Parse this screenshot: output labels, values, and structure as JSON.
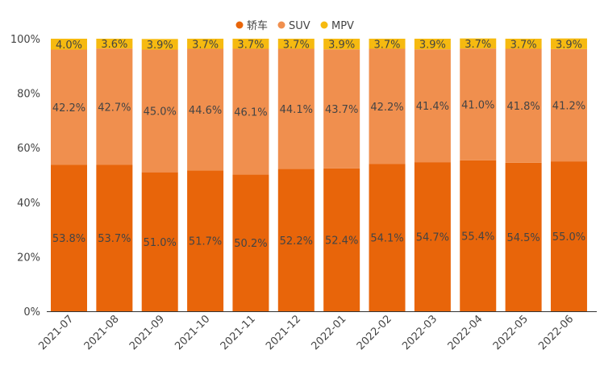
{
  "chart_data": {
    "type": "bar",
    "stacked": true,
    "title": "",
    "xlabel": "",
    "ylabel": "",
    "ylim": [
      0,
      100
    ],
    "yticks": [
      "0%",
      "20%",
      "40%",
      "60%",
      "80%",
      "100%"
    ],
    "legend_position": "top-center",
    "categories": [
      "2021-07",
      "2021-08",
      "2021-09",
      "2021-10",
      "2021-11",
      "2021-12",
      "2022-01",
      "2022-02",
      "2022-03",
      "2022-04",
      "2022-05",
      "2022-06"
    ],
    "series": [
      {
        "name": "轿车",
        "color": "#E8650A",
        "values": [
          53.8,
          53.7,
          51.0,
          51.7,
          50.2,
          52.2,
          52.4,
          54.1,
          54.7,
          55.4,
          54.5,
          55.0
        ]
      },
      {
        "name": "SUV",
        "color": "#F08F4E",
        "values": [
          42.2,
          42.7,
          45.0,
          44.6,
          46.1,
          44.1,
          43.7,
          42.2,
          41.4,
          41.0,
          41.8,
          41.2
        ]
      },
      {
        "name": "MPV",
        "color": "#F6BA10",
        "values": [
          4.0,
          3.6,
          3.9,
          3.7,
          3.7,
          3.7,
          3.9,
          3.7,
          3.9,
          3.7,
          3.7,
          3.9
        ]
      }
    ]
  }
}
